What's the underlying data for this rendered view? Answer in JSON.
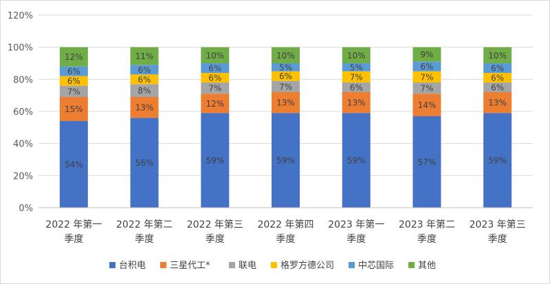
{
  "chart_data": {
    "type": "bar",
    "stacked": true,
    "categories": [
      [
        "2022 年第一",
        "季度"
      ],
      [
        "2022 年第二",
        "季度"
      ],
      [
        "2022 年第三",
        "季度"
      ],
      [
        "2022 年第四",
        "季度"
      ],
      [
        "2023 年第一",
        "季度"
      ],
      [
        "2023 年第二",
        "季度"
      ],
      [
        "2023 年第三",
        "季度"
      ]
    ],
    "series": [
      {
        "name": "台积电",
        "color": "#4472C4",
        "values": [
          54,
          56,
          59,
          59,
          59,
          57,
          59
        ]
      },
      {
        "name": "三星代工*",
        "color": "#ED7D31",
        "values": [
          15,
          13,
          12,
          13,
          13,
          14,
          13
        ]
      },
      {
        "name": "联电",
        "color": "#A5A5A5",
        "values": [
          7,
          8,
          7,
          7,
          6,
          7,
          6
        ]
      },
      {
        "name": "格罗方德公司",
        "color": "#FFC000",
        "values": [
          6,
          6,
          6,
          6,
          7,
          7,
          6
        ]
      },
      {
        "name": "中芯国际",
        "color": "#5B9BD5",
        "values": [
          6,
          6,
          6,
          5,
          5,
          6,
          6
        ]
      },
      {
        "name": "其他",
        "color": "#70AD47",
        "values": [
          12,
          11,
          10,
          10,
          10,
          9,
          10
        ]
      }
    ],
    "ylim": [
      0,
      120
    ],
    "yticks": [
      "0%",
      "20%",
      "40%",
      "60%",
      "80%",
      "100%",
      "120%"
    ],
    "ytick_values": [
      0,
      20,
      40,
      60,
      80,
      100,
      120
    ],
    "value_suffix": "%",
    "grid": true,
    "legend_position": "bottom"
  }
}
